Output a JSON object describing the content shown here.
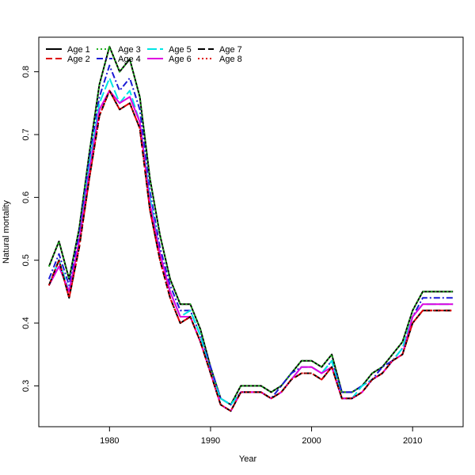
{
  "chart_data": {
    "type": "line",
    "xlabel": "Year",
    "ylabel": "Natural mortality",
    "xlim": [
      1973,
      2015
    ],
    "ylim": [
      0.235,
      0.855
    ],
    "xticks": [
      1980,
      1990,
      2000,
      2010
    ],
    "yticks": [
      0.3,
      0.4,
      0.5,
      0.6,
      0.7,
      0.8
    ],
    "legend_position": "top-left",
    "x": [
      1974,
      1975,
      1976,
      1977,
      1978,
      1979,
      1980,
      1981,
      1982,
      1983,
      1984,
      1985,
      1986,
      1987,
      1988,
      1989,
      1990,
      1991,
      1992,
      1993,
      1994,
      1995,
      1996,
      1997,
      1998,
      1999,
      2000,
      2001,
      2002,
      2003,
      2004,
      2005,
      2006,
      2007,
      2008,
      2009,
      2010,
      2011,
      2012,
      2013,
      2014
    ],
    "series": [
      {
        "name": "Age 1",
        "color": "#000000",
        "dash": "",
        "values": [
          0.49,
          0.53,
          0.47,
          0.55,
          0.67,
          0.78,
          0.84,
          0.8,
          0.82,
          0.76,
          0.63,
          0.54,
          0.47,
          0.43,
          0.43,
          0.39,
          0.33,
          0.28,
          0.27,
          0.3,
          0.3,
          0.3,
          0.29,
          0.3,
          0.32,
          0.34,
          0.34,
          0.33,
          0.35,
          0.29,
          0.29,
          0.3,
          0.32,
          0.33,
          0.35,
          0.37,
          0.42,
          0.45,
          0.45,
          0.45,
          0.45
        ]
      },
      {
        "name": "Age 2",
        "color": "#df0000",
        "dash": "8,4",
        "values": [
          0.46,
          0.5,
          0.44,
          0.52,
          0.63,
          0.73,
          0.77,
          0.74,
          0.75,
          0.71,
          0.58,
          0.5,
          0.44,
          0.4,
          0.41,
          0.37,
          0.32,
          0.27,
          0.26,
          0.29,
          0.29,
          0.29,
          0.28,
          0.29,
          0.31,
          0.32,
          0.32,
          0.31,
          0.33,
          0.28,
          0.28,
          0.29,
          0.31,
          0.32,
          0.34,
          0.35,
          0.4,
          0.42,
          0.42,
          0.42,
          0.42
        ]
      },
      {
        "name": "Age 3",
        "color": "#22b422",
        "dash": "2,3",
        "values": [
          0.49,
          0.53,
          0.47,
          0.55,
          0.67,
          0.78,
          0.84,
          0.8,
          0.82,
          0.76,
          0.63,
          0.54,
          0.47,
          0.43,
          0.43,
          0.39,
          0.33,
          0.28,
          0.27,
          0.3,
          0.3,
          0.3,
          0.29,
          0.3,
          0.32,
          0.34,
          0.34,
          0.33,
          0.35,
          0.29,
          0.29,
          0.3,
          0.32,
          0.33,
          0.35,
          0.37,
          0.42,
          0.45,
          0.45,
          0.45,
          0.45
        ]
      },
      {
        "name": "Age 4",
        "color": "#1b1bd6",
        "dash": "8,3,2,3",
        "values": [
          0.47,
          0.51,
          0.46,
          0.54,
          0.66,
          0.76,
          0.81,
          0.77,
          0.79,
          0.74,
          0.61,
          0.52,
          0.46,
          0.42,
          0.42,
          0.38,
          0.33,
          0.28,
          0.27,
          0.29,
          0.29,
          0.29,
          0.28,
          0.3,
          0.32,
          0.33,
          0.33,
          0.32,
          0.34,
          0.29,
          0.29,
          0.3,
          0.31,
          0.33,
          0.34,
          0.36,
          0.41,
          0.44,
          0.44,
          0.44,
          0.44
        ]
      },
      {
        "name": "Age 5",
        "color": "#00e5e5",
        "dash": "12,4",
        "values": [
          0.46,
          0.5,
          0.45,
          0.53,
          0.65,
          0.75,
          0.79,
          0.75,
          0.77,
          0.72,
          0.6,
          0.51,
          0.45,
          0.41,
          0.42,
          0.38,
          0.32,
          0.28,
          0.27,
          0.29,
          0.29,
          0.29,
          0.28,
          0.29,
          0.31,
          0.33,
          0.33,
          0.32,
          0.34,
          0.28,
          0.28,
          0.3,
          0.31,
          0.32,
          0.34,
          0.36,
          0.41,
          0.43,
          0.43,
          0.43,
          0.43
        ]
      },
      {
        "name": "Age 6",
        "color": "#e000e0",
        "dash": "",
        "values": [
          0.46,
          0.49,
          0.45,
          0.53,
          0.64,
          0.74,
          0.77,
          0.75,
          0.76,
          0.72,
          0.59,
          0.51,
          0.45,
          0.41,
          0.41,
          0.37,
          0.32,
          0.27,
          0.26,
          0.29,
          0.29,
          0.29,
          0.28,
          0.29,
          0.31,
          0.33,
          0.33,
          0.32,
          0.33,
          0.28,
          0.28,
          0.29,
          0.31,
          0.32,
          0.34,
          0.35,
          0.41,
          0.43,
          0.43,
          0.43,
          0.43
        ]
      },
      {
        "name": "Age 7",
        "color": "#000000",
        "dash": "9,4",
        "values": [
          0.46,
          0.5,
          0.44,
          0.52,
          0.63,
          0.73,
          0.77,
          0.74,
          0.75,
          0.71,
          0.58,
          0.5,
          0.44,
          0.4,
          0.41,
          0.37,
          0.32,
          0.27,
          0.26,
          0.29,
          0.29,
          0.29,
          0.28,
          0.29,
          0.31,
          0.32,
          0.32,
          0.31,
          0.33,
          0.28,
          0.28,
          0.29,
          0.31,
          0.32,
          0.34,
          0.35,
          0.4,
          0.42,
          0.42,
          0.42,
          0.42
        ]
      },
      {
        "name": "Age 8",
        "color": "#e00000",
        "dash": "2,3",
        "values": [
          0.46,
          0.5,
          0.44,
          0.52,
          0.63,
          0.73,
          0.77,
          0.74,
          0.75,
          0.71,
          0.58,
          0.5,
          0.44,
          0.4,
          0.41,
          0.37,
          0.32,
          0.27,
          0.26,
          0.29,
          0.29,
          0.29,
          0.28,
          0.29,
          0.31,
          0.32,
          0.32,
          0.31,
          0.33,
          0.28,
          0.28,
          0.29,
          0.31,
          0.32,
          0.34,
          0.35,
          0.4,
          0.42,
          0.42,
          0.42,
          0.42
        ]
      }
    ]
  }
}
